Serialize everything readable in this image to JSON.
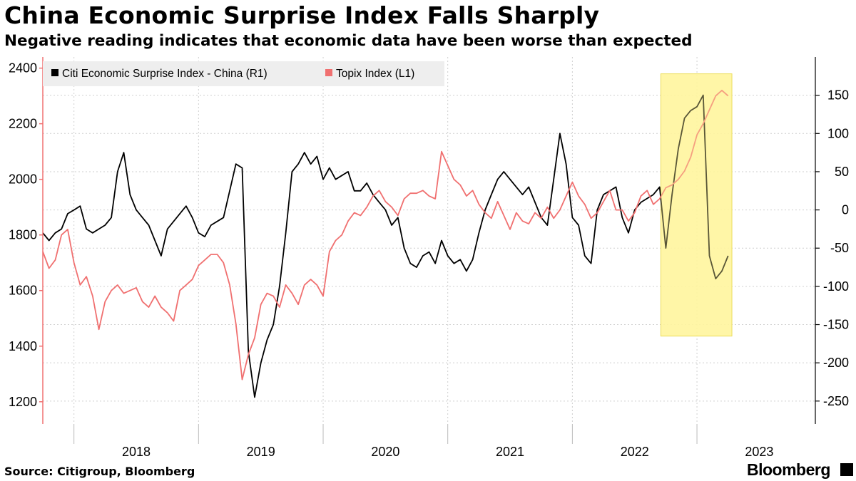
{
  "title": "China Economic Surprise Index Falls Sharply",
  "subtitle": "Negative reading indicates that economic data have been worse than expected",
  "footer": {
    "source": "Source: Citigroup, Bloomberg",
    "brand": "Bloomberg"
  },
  "colors": {
    "citi_line": "#000000",
    "topix_line": "#f07070",
    "highlight_fill": "#fff59d",
    "highlight_stroke": "#e8d84a",
    "grid": "#cfcfcf",
    "left_axis": "#f07070",
    "legend_bg": "#eeeeee"
  },
  "chart_data": {
    "type": "line",
    "title": "China Economic Surprise Index Falls Sharply",
    "subtitle": "Negative reading indicates that economic data have been worse than expected",
    "x_tick_labels": [
      "2018",
      "2019",
      "2020",
      "2021",
      "2022",
      "2023"
    ],
    "x_range": [
      2017.75,
      2023.95
    ],
    "left_axis": {
      "series": "Topix Index (L1)",
      "ylim": [
        1120,
        2440
      ],
      "ticks": [
        1200,
        1400,
        1600,
        1800,
        2000,
        2200,
        2400
      ]
    },
    "right_axis": {
      "series": "Citi Economic Surprise Index - China (R1)",
      "ylim": [
        -280,
        200
      ],
      "ticks": [
        -250,
        -200,
        -150,
        -100,
        -50,
        0,
        50,
        100,
        150
      ]
    },
    "legend": {
      "placement": "top-left",
      "entries": [
        "Citi Economic Surprise Index - China  (R1)",
        "Topix Index (L1)"
      ]
    },
    "highlight": {
      "x_range": [
        2022.71,
        2023.28
      ],
      "y_range_right": [
        -165,
        178
      ]
    },
    "grid": true,
    "series": [
      {
        "name": "Citi Economic Surprise Index - China  (R1)",
        "axis": "right",
        "color": "#000000",
        "x": [
          2017.75,
          2017.8,
          2017.85,
          2017.9,
          2017.95,
          2018.0,
          2018.05,
          2018.1,
          2018.15,
          2018.2,
          2018.25,
          2018.3,
          2018.35,
          2018.4,
          2018.45,
          2018.5,
          2018.55,
          2018.6,
          2018.65,
          2018.7,
          2018.75,
          2018.8,
          2018.85,
          2018.9,
          2018.95,
          2019.0,
          2019.05,
          2019.1,
          2019.15,
          2019.2,
          2019.25,
          2019.3,
          2019.35,
          2019.4,
          2019.45,
          2019.5,
          2019.55,
          2019.6,
          2019.65,
          2019.7,
          2019.75,
          2019.8,
          2019.85,
          2019.9,
          2019.95,
          2020.0,
          2020.05,
          2020.1,
          2020.15,
          2020.2,
          2020.25,
          2020.3,
          2020.35,
          2020.4,
          2020.45,
          2020.5,
          2020.55,
          2020.6,
          2020.65,
          2020.7,
          2020.75,
          2020.8,
          2020.85,
          2020.9,
          2020.95,
          2021.0,
          2021.05,
          2021.1,
          2021.15,
          2021.2,
          2021.25,
          2021.3,
          2021.35,
          2021.4,
          2021.45,
          2021.5,
          2021.55,
          2021.6,
          2021.65,
          2021.7,
          2021.75,
          2021.8,
          2021.85,
          2021.9,
          2021.95,
          2022.0,
          2022.05,
          2022.1,
          2022.15,
          2022.2,
          2022.25,
          2022.3,
          2022.35,
          2022.4,
          2022.45,
          2022.5,
          2022.55,
          2022.6,
          2022.65,
          2022.7,
          2022.75,
          2022.8,
          2022.85,
          2022.9,
          2022.95,
          2023.0,
          2023.05,
          2023.1,
          2023.15,
          2023.2,
          2023.25
        ],
        "values": [
          -30,
          -40,
          -30,
          -25,
          -5,
          0,
          5,
          -25,
          -30,
          -25,
          -20,
          -10,
          50,
          75,
          20,
          0,
          -10,
          -20,
          -40,
          -60,
          -25,
          -15,
          -5,
          5,
          -10,
          -30,
          -35,
          -20,
          -15,
          -10,
          25,
          60,
          55,
          -185,
          -245,
          -200,
          -170,
          -150,
          -100,
          -30,
          50,
          60,
          75,
          60,
          70,
          40,
          55,
          40,
          45,
          50,
          25,
          25,
          35,
          20,
          10,
          0,
          -20,
          -10,
          -50,
          -70,
          -75,
          -60,
          -55,
          -70,
          -40,
          -60,
          -70,
          -65,
          -80,
          -65,
          -30,
          0,
          20,
          40,
          50,
          40,
          30,
          20,
          30,
          10,
          -10,
          -20,
          40,
          100,
          60,
          -10,
          -20,
          -60,
          -70,
          0,
          20,
          25,
          30,
          -10,
          -30,
          0,
          10,
          15,
          20,
          30,
          -50,
          20,
          80,
          120,
          130,
          135,
          150,
          -60,
          -90,
          -80,
          -60
        ]
      },
      {
        "name": "Topix Index (L1)",
        "axis": "left",
        "color": "#f07070",
        "x": [
          2017.75,
          2017.8,
          2017.85,
          2017.9,
          2017.95,
          2018.0,
          2018.05,
          2018.1,
          2018.15,
          2018.2,
          2018.25,
          2018.3,
          2018.35,
          2018.4,
          2018.45,
          2018.5,
          2018.55,
          2018.6,
          2018.65,
          2018.7,
          2018.75,
          2018.8,
          2018.85,
          2018.9,
          2018.95,
          2019.0,
          2019.05,
          2019.1,
          2019.15,
          2019.2,
          2019.25,
          2019.3,
          2019.35,
          2019.4,
          2019.45,
          2019.5,
          2019.55,
          2019.6,
          2019.65,
          2019.7,
          2019.75,
          2019.8,
          2019.85,
          2019.9,
          2019.95,
          2020.0,
          2020.05,
          2020.1,
          2020.15,
          2020.2,
          2020.25,
          2020.3,
          2020.35,
          2020.4,
          2020.45,
          2020.5,
          2020.55,
          2020.6,
          2020.65,
          2020.7,
          2020.75,
          2020.8,
          2020.85,
          2020.9,
          2020.95,
          2021.0,
          2021.05,
          2021.1,
          2021.15,
          2021.2,
          2021.25,
          2021.3,
          2021.35,
          2021.4,
          2021.45,
          2021.5,
          2021.55,
          2021.6,
          2021.65,
          2021.7,
          2021.75,
          2021.8,
          2021.85,
          2021.9,
          2021.95,
          2022.0,
          2022.05,
          2022.1,
          2022.15,
          2022.2,
          2022.25,
          2022.3,
          2022.35,
          2022.4,
          2022.45,
          2022.5,
          2022.55,
          2022.6,
          2022.65,
          2022.7,
          2022.75,
          2022.8,
          2022.85,
          2022.9,
          2022.95,
          2023.0,
          2023.05,
          2023.1,
          2023.15,
          2023.2,
          2023.25
        ],
        "values": [
          1740,
          1680,
          1710,
          1800,
          1820,
          1700,
          1620,
          1650,
          1580,
          1460,
          1560,
          1600,
          1620,
          1590,
          1600,
          1610,
          1560,
          1540,
          1580,
          1540,
          1520,
          1490,
          1600,
          1620,
          1640,
          1690,
          1710,
          1730,
          1730,
          1700,
          1620,
          1480,
          1280,
          1370,
          1430,
          1550,
          1590,
          1580,
          1540,
          1620,
          1590,
          1550,
          1620,
          1640,
          1620,
          1580,
          1740,
          1780,
          1800,
          1850,
          1880,
          1870,
          1900,
          1940,
          1960,
          1920,
          1900,
          1870,
          1930,
          1950,
          1950,
          1960,
          1940,
          1930,
          2100,
          2050,
          2000,
          1980,
          1940,
          1960,
          1910,
          1880,
          1860,
          1920,
          1870,
          1820,
          1880,
          1850,
          1840,
          1880,
          1860,
          1900,
          1860,
          1890,
          1940,
          1990,
          1940,
          1910,
          1860,
          1880,
          1920,
          1960,
          1890,
          1890,
          1850,
          1880,
          1940,
          1960,
          1910,
          1930,
          1970,
          1980,
          2000,
          2030,
          2080,
          2160,
          2200,
          2250,
          2300,
          2320,
          2300
        ]
      }
    ]
  }
}
